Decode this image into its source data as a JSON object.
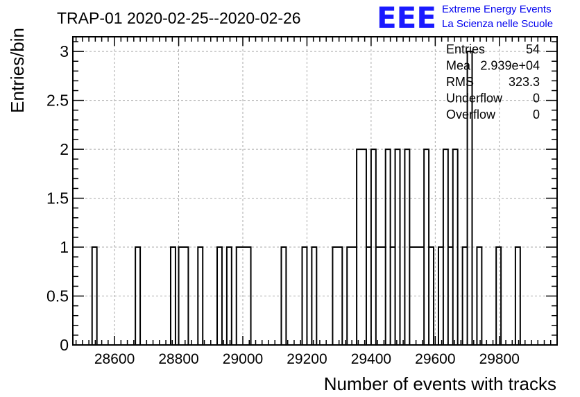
{
  "chart_data": {
    "type": "bar",
    "title": "TRAP-01 2020-02-25--2020-02-26",
    "xlabel": "Number of events with tracks",
    "ylabel": "Entries/bin",
    "xlim": [
      28470,
      29980
    ],
    "ylim": [
      0,
      3.15
    ],
    "grid": true,
    "x_ticks": [
      28600,
      28800,
      29000,
      29200,
      29400,
      29600,
      29800
    ],
    "y_ticks": [
      0,
      0.5,
      1,
      1.5,
      2,
      2.5,
      3
    ],
    "x_tick_labels": [
      "28600",
      "28800",
      "29000",
      "29200",
      "29400",
      "29600",
      "29800"
    ],
    "y_tick_labels": [
      "0",
      "0.5",
      "1",
      "1.5",
      "2",
      "2.5",
      "3"
    ],
    "bins": [
      {
        "x0": 28530,
        "x1": 28545,
        "y": 1
      },
      {
        "x0": 28665,
        "x1": 28680,
        "y": 1
      },
      {
        "x0": 28775,
        "x1": 28790,
        "y": 1
      },
      {
        "x0": 28800,
        "x1": 28830,
        "y": 1
      },
      {
        "x0": 28860,
        "x1": 28875,
        "y": 1
      },
      {
        "x0": 28920,
        "x1": 28935,
        "y": 1
      },
      {
        "x0": 28950,
        "x1": 28965,
        "y": 1
      },
      {
        "x0": 28980,
        "x1": 29025,
        "y": 1
      },
      {
        "x0": 29120,
        "x1": 29135,
        "y": 1
      },
      {
        "x0": 29185,
        "x1": 29200,
        "y": 1
      },
      {
        "x0": 29215,
        "x1": 29230,
        "y": 1
      },
      {
        "x0": 29280,
        "x1": 29310,
        "y": 1
      },
      {
        "x0": 29325,
        "x1": 29355,
        "y": 1
      },
      {
        "x0": 29355,
        "x1": 29385,
        "y": 2
      },
      {
        "x0": 29385,
        "x1": 29400,
        "y": 1
      },
      {
        "x0": 29400,
        "x1": 29415,
        "y": 2
      },
      {
        "x0": 29415,
        "x1": 29445,
        "y": 1
      },
      {
        "x0": 29445,
        "x1": 29460,
        "y": 2
      },
      {
        "x0": 29460,
        "x1": 29475,
        "y": 1
      },
      {
        "x0": 29475,
        "x1": 29490,
        "y": 2
      },
      {
        "x0": 29490,
        "x1": 29505,
        "y": 0
      },
      {
        "x0": 29505,
        "x1": 29520,
        "y": 2
      },
      {
        "x0": 29520,
        "x1": 29565,
        "y": 1
      },
      {
        "x0": 29565,
        "x1": 29580,
        "y": 2
      },
      {
        "x0": 29580,
        "x1": 29595,
        "y": 1
      },
      {
        "x0": 29595,
        "x1": 29610,
        "y": 0
      },
      {
        "x0": 29610,
        "x1": 29625,
        "y": 1
      },
      {
        "x0": 29625,
        "x1": 29640,
        "y": 2
      },
      {
        "x0": 29640,
        "x1": 29655,
        "y": 1
      },
      {
        "x0": 29655,
        "x1": 29670,
        "y": 2
      },
      {
        "x0": 29670,
        "x1": 29685,
        "y": 0
      },
      {
        "x0": 29685,
        "x1": 29700,
        "y": 1
      },
      {
        "x0": 29700,
        "x1": 29715,
        "y": 3
      },
      {
        "x0": 29730,
        "x1": 29745,
        "y": 1
      },
      {
        "x0": 29790,
        "x1": 29805,
        "y": 1
      },
      {
        "x0": 29850,
        "x1": 29865,
        "y": 1
      }
    ]
  },
  "stats": [
    {
      "label": "Entries",
      "value": "54"
    },
    {
      "label": "Mea",
      "value": "2.939e+04"
    },
    {
      "label": "RMS",
      "value": "323.3"
    },
    {
      "label": "Underflow",
      "value": "0"
    },
    {
      "label": "Overflow",
      "value": "0"
    }
  ],
  "logo": {
    "mark": "EEE",
    "line1": "Extreme Energy Events",
    "line2": "La Scienza nelle Scuole"
  }
}
